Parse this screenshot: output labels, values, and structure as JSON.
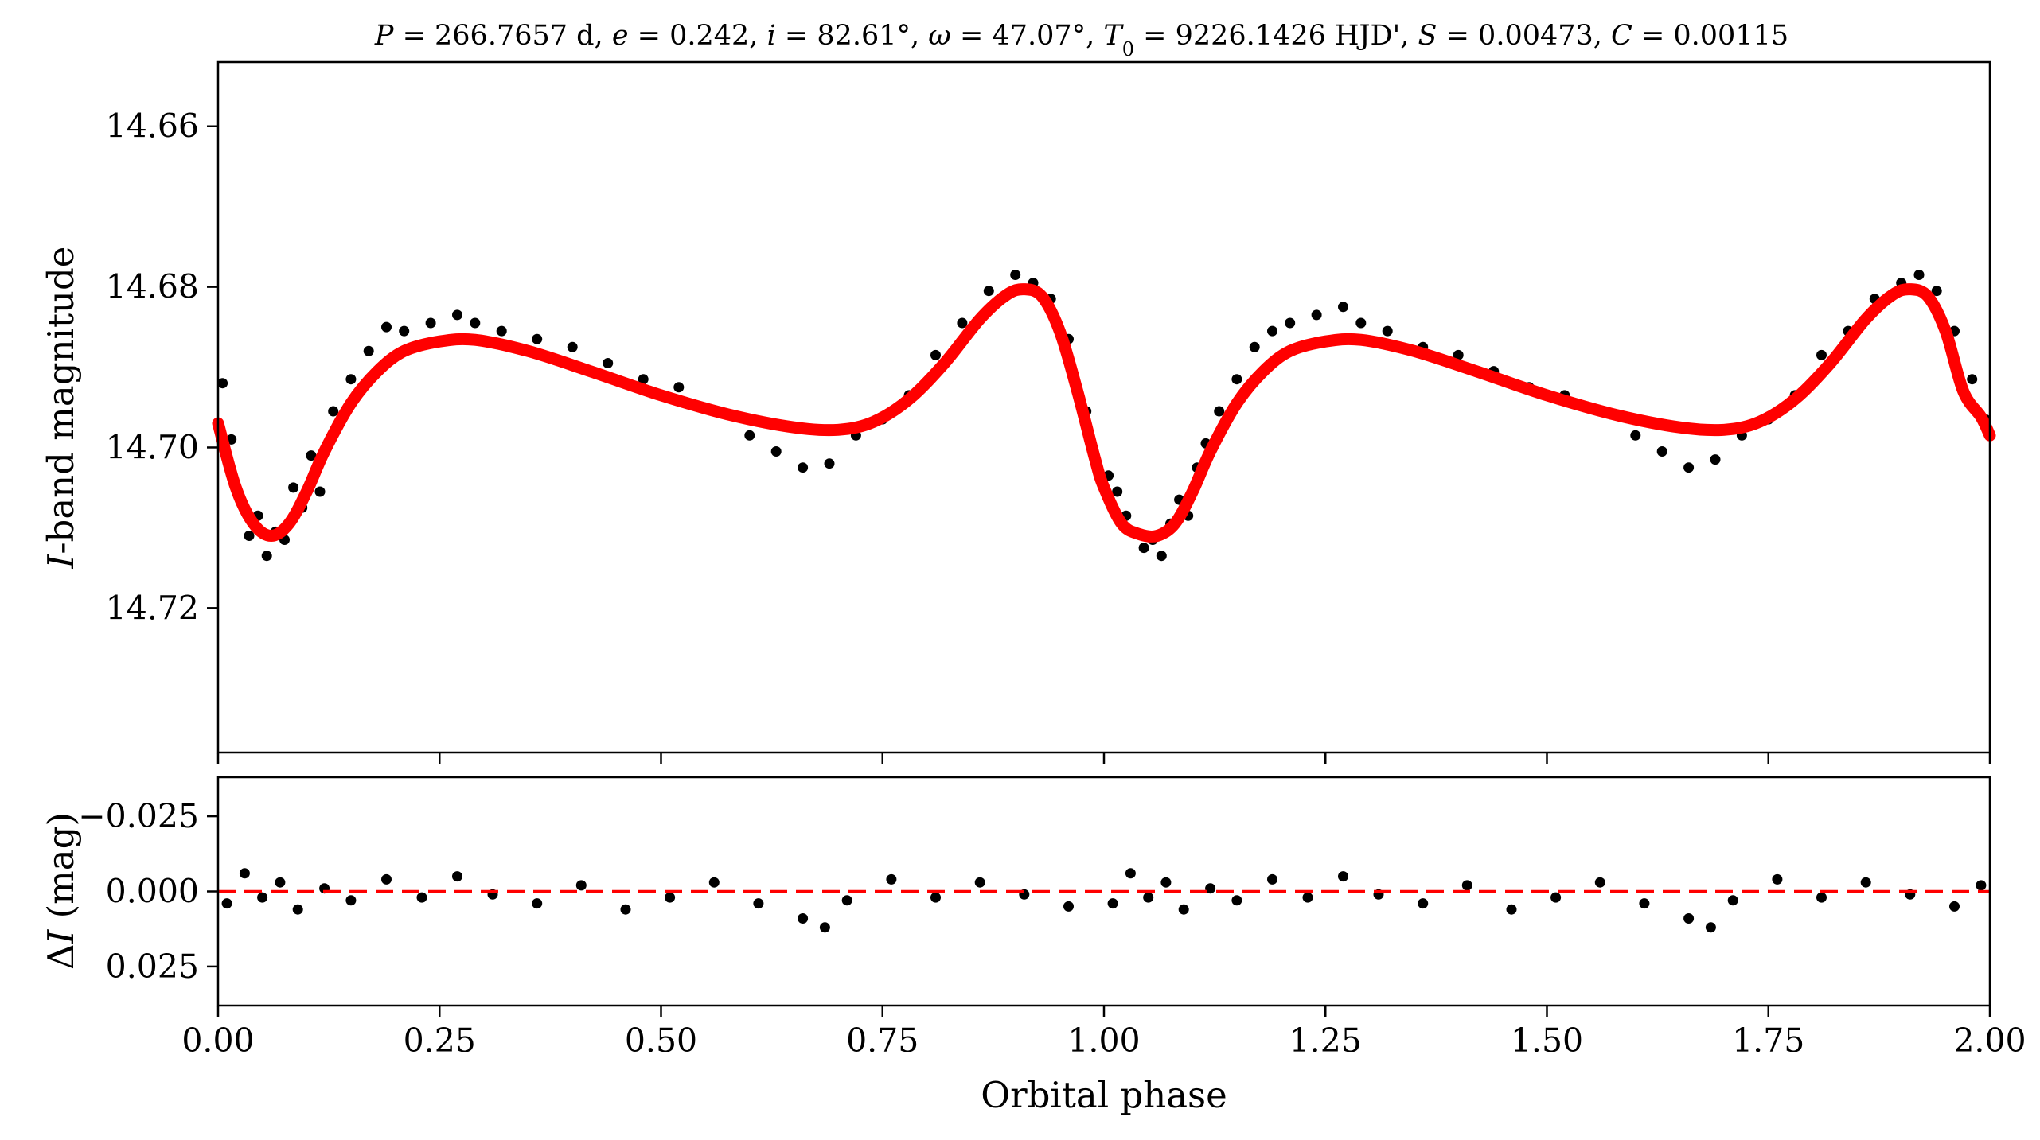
{
  "chart_data": [
    {
      "panel": "light-curve",
      "type": "scatter",
      "title": "P = 266.7657 d, e = 0.242, i = 82.61°, ω = 47.07°, T0 = 9226.1426 HJD', S = 0.00473, C = 0.00115",
      "title_parts": {
        "P_label": "P",
        "P_value": " = 266.7657 d, ",
        "e_label": "e",
        "e_value": " = 0.242, ",
        "i_label": "i",
        "i_value": " = 82.61°, ",
        "w_label": "ω",
        "w_value": " = 47.07°, ",
        "T_label": "T",
        "T_sub": "0",
        "T_value": " = 9226.1426 HJD', ",
        "S_label": "S",
        "S_value": " = 0.00473, ",
        "C_label": "C",
        "C_value": " = 0.00115"
      },
      "ylabel_italic": "I",
      "ylabel_rest": "-band magnitude",
      "xlim": [
        0,
        2
      ],
      "ylim": [
        14.738,
        14.652
      ],
      "y_inverted": true,
      "yticks": [
        14.66,
        14.68,
        14.7,
        14.72
      ],
      "ytick_labels": [
        "14.66",
        "14.68",
        "14.70",
        "14.72"
      ],
      "point_color": "#000000",
      "model_color": "#ff0000",
      "series": [
        {
          "kind": "model",
          "x": [
            0.0,
            0.02,
            0.04,
            0.06,
            0.08,
            0.1,
            0.12,
            0.15,
            0.18,
            0.21,
            0.25,
            0.29,
            0.35,
            0.42,
            0.5,
            0.58,
            0.65,
            0.7,
            0.74,
            0.78,
            0.82,
            0.86,
            0.89,
            0.91,
            0.93,
            0.95,
            0.97,
            0.99,
            1.0,
            1.02,
            1.04,
            1.06,
            1.08,
            1.1,
            1.12,
            1.15,
            1.18,
            1.21,
            1.25,
            1.29,
            1.35,
            1.42,
            1.5,
            1.58,
            1.65,
            1.7,
            1.74,
            1.78,
            1.82,
            1.86,
            1.89,
            1.91,
            1.93,
            1.95,
            1.97,
            1.99,
            2.0
          ],
          "y": [
            14.697,
            14.705,
            14.7095,
            14.711,
            14.7095,
            14.7055,
            14.7005,
            14.6945,
            14.6905,
            14.688,
            14.6868,
            14.6866,
            14.688,
            14.6905,
            14.6935,
            14.696,
            14.6975,
            14.6978,
            14.6968,
            14.694,
            14.6895,
            14.684,
            14.681,
            14.6803,
            14.6812,
            14.6855,
            14.693,
            14.7015,
            14.705,
            14.7095,
            14.7108,
            14.711,
            14.7095,
            14.7055,
            14.7005,
            14.6945,
            14.6905,
            14.688,
            14.6868,
            14.6866,
            14.688,
            14.6905,
            14.6935,
            14.696,
            14.6975,
            14.6978,
            14.6968,
            14.694,
            14.6895,
            14.684,
            14.681,
            14.6803,
            14.6812,
            14.6855,
            14.693,
            14.6962,
            14.6985
          ]
        },
        {
          "kind": "observations",
          "x": [
            0.005,
            0.015,
            0.025,
            0.035,
            0.045,
            0.055,
            0.065,
            0.075,
            0.085,
            0.095,
            0.105,
            0.115,
            0.13,
            0.15,
            0.17,
            0.19,
            0.21,
            0.24,
            0.27,
            0.29,
            0.32,
            0.36,
            0.4,
            0.44,
            0.48,
            0.52,
            0.56,
            0.6,
            0.63,
            0.66,
            0.69,
            0.72,
            0.75,
            0.78,
            0.81,
            0.84,
            0.87,
            0.9,
            0.92,
            0.94,
            0.96,
            0.98,
            1.005,
            1.015,
            1.025,
            1.035,
            1.045,
            1.055,
            1.065,
            1.075,
            1.085,
            1.095,
            1.105,
            1.115,
            1.13,
            1.15,
            1.17,
            1.19,
            1.21,
            1.24,
            1.27,
            1.29,
            1.32,
            1.36,
            1.4,
            1.44,
            1.48,
            1.52,
            1.56,
            1.6,
            1.63,
            1.66,
            1.69,
            1.72,
            1.75,
            1.78,
            1.81,
            1.84,
            1.87,
            1.9,
            1.92,
            1.94,
            1.96,
            1.98,
            1.995
          ],
          "y": [
            14.692,
            14.699,
            14.7065,
            14.711,
            14.7085,
            14.7135,
            14.7105,
            14.7115,
            14.705,
            14.7075,
            14.701,
            14.7055,
            14.6955,
            14.6915,
            14.688,
            14.685,
            14.6855,
            14.6845,
            14.6835,
            14.6845,
            14.6855,
            14.6865,
            14.6875,
            14.6895,
            14.6915,
            14.6925,
            14.6955,
            14.6985,
            14.7005,
            14.7025,
            14.702,
            14.6985,
            14.6965,
            14.6935,
            14.6885,
            14.6845,
            14.6805,
            14.6785,
            14.6795,
            14.6815,
            14.6865,
            14.6955,
            14.7035,
            14.7055,
            14.7085,
            14.7105,
            14.7125,
            14.7115,
            14.7135,
            14.7095,
            14.7065,
            14.7085,
            14.7025,
            14.6995,
            14.6955,
            14.6915,
            14.6875,
            14.6855,
            14.6845,
            14.6835,
            14.6825,
            14.6845,
            14.6855,
            14.6875,
            14.6885,
            14.6905,
            14.6925,
            14.6935,
            14.6955,
            14.6985,
            14.7005,
            14.7025,
            14.7015,
            14.6985,
            14.6965,
            14.6935,
            14.6885,
            14.6855,
            14.6815,
            14.6795,
            14.6785,
            14.6805,
            14.6855,
            14.6915,
            14.6965
          ]
        }
      ]
    },
    {
      "panel": "residuals",
      "type": "scatter",
      "xlabel": "Orbital phase",
      "ylabel_prefix": "Δ",
      "ylabel_italic": "I",
      "ylabel_rest": " (mag)",
      "xlim": [
        0,
        2
      ],
      "ylim": [
        0.038,
        -0.038
      ],
      "y_inverted": true,
      "xticks": [
        0,
        0.25,
        0.5,
        0.75,
        1.0,
        1.25,
        1.5,
        1.75,
        2.0
      ],
      "xtick_labels": [
        "0.00",
        "0.25",
        "0.50",
        "0.75",
        "1.00",
        "1.25",
        "1.50",
        "1.75",
        "2.00"
      ],
      "yticks": [
        -0.025,
        0.0,
        0.025
      ],
      "ytick_labels": [
        "−0.025",
        "0.000",
        "0.025"
      ],
      "zero_line": 0.0,
      "zero_line_color": "#ff0000",
      "point_color": "#000000",
      "series": [
        {
          "kind": "residuals",
          "x": [
            0.01,
            0.03,
            0.05,
            0.07,
            0.09,
            0.12,
            0.15,
            0.19,
            0.23,
            0.27,
            0.31,
            0.36,
            0.41,
            0.46,
            0.51,
            0.56,
            0.61,
            0.66,
            0.685,
            0.71,
            0.76,
            0.81,
            0.86,
            0.91,
            0.96,
            1.01,
            1.03,
            1.05,
            1.07,
            1.09,
            1.12,
            1.15,
            1.19,
            1.23,
            1.27,
            1.31,
            1.36,
            1.41,
            1.46,
            1.51,
            1.56,
            1.61,
            1.66,
            1.685,
            1.71,
            1.76,
            1.81,
            1.86,
            1.91,
            1.96,
            1.99
          ],
          "y": [
            0.004,
            -0.006,
            0.002,
            -0.003,
            0.006,
            -0.001,
            0.003,
            -0.004,
            0.002,
            -0.005,
            0.001,
            0.004,
            -0.002,
            0.006,
            0.002,
            -0.003,
            0.004,
            0.009,
            0.012,
            0.003,
            -0.004,
            0.002,
            -0.003,
            0.001,
            0.005,
            0.004,
            -0.006,
            0.002,
            -0.003,
            0.006,
            -0.001,
            0.003,
            -0.004,
            0.002,
            -0.005,
            0.001,
            0.004,
            -0.002,
            0.006,
            0.002,
            -0.003,
            0.004,
            0.009,
            0.012,
            0.003,
            -0.004,
            0.002,
            -0.003,
            0.001,
            0.005,
            -0.002
          ]
        }
      ]
    }
  ]
}
